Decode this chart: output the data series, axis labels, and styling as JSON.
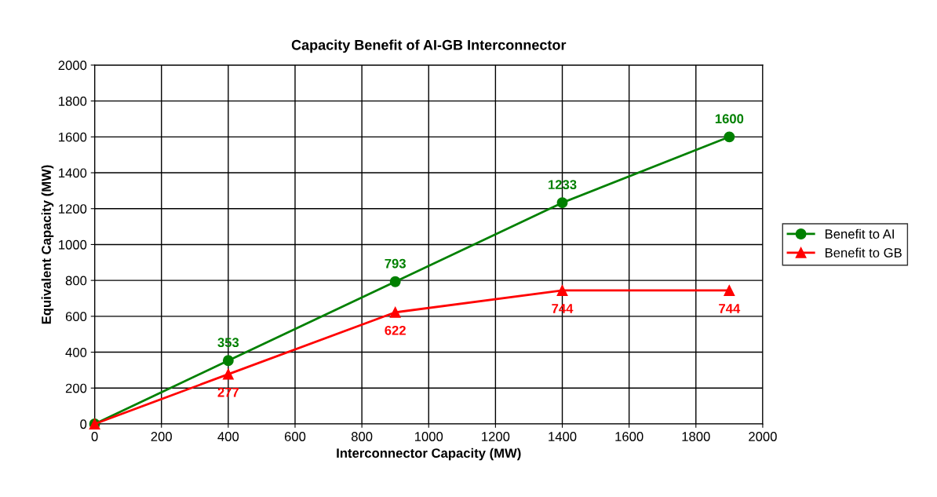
{
  "chart_data": {
    "type": "line",
    "title": "Capacity Benefit of AI-GB Interconnector",
    "xlabel": "Interconnector Capacity (MW)",
    "ylabel": "Equivalent Capacity (MW)",
    "x": [
      0,
      400,
      900,
      1400,
      1900
    ],
    "series": [
      {
        "name": "Benefit to AI",
        "color": "#008000",
        "marker": "circle",
        "values": [
          0,
          353,
          793,
          1233,
          1600
        ],
        "value_labels": [
          null,
          "353",
          "793",
          "1233",
          "1600"
        ]
      },
      {
        "name": "Benefit to GB",
        "color": "#ff0000",
        "marker": "triangle",
        "values": [
          0,
          277,
          622,
          744,
          744
        ],
        "value_labels": [
          null,
          "277",
          "622",
          "744",
          "744"
        ]
      }
    ],
    "xlim": [
      0,
      2000
    ],
    "xticks": [
      0,
      200,
      400,
      600,
      800,
      1000,
      1200,
      1400,
      1600,
      1800,
      2000
    ],
    "ylim": [
      0,
      2000
    ],
    "yticks": [
      0,
      200,
      400,
      600,
      800,
      1000,
      1200,
      1400,
      1600,
      1800,
      2000
    ],
    "grid": true,
    "legend": "right",
    "line_style": "solid"
  }
}
